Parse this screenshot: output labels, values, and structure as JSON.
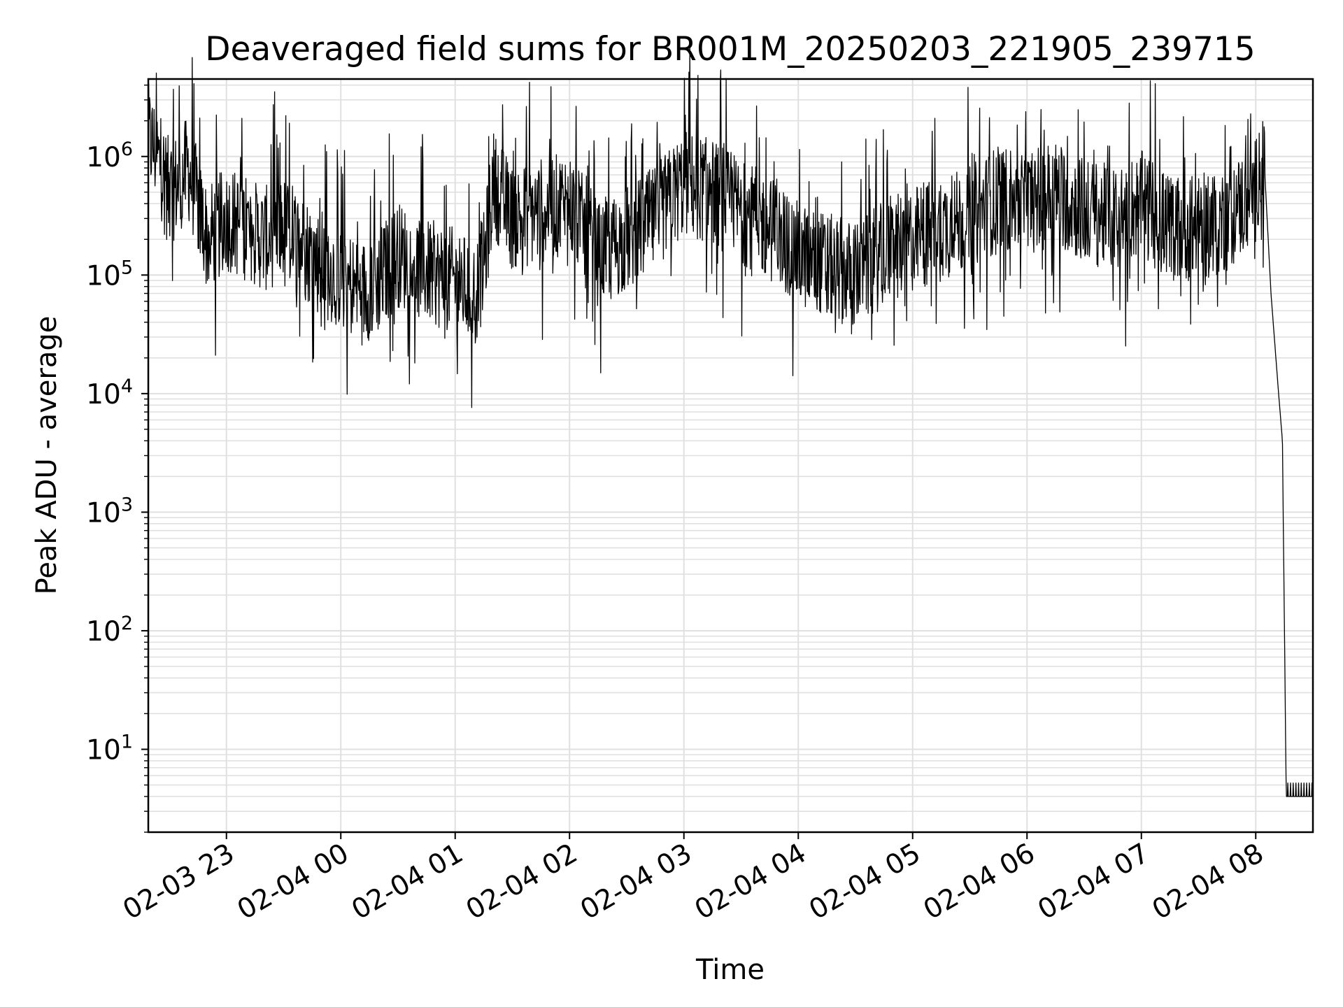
{
  "chart_data": {
    "type": "line",
    "title": "Deaveraged field sums for BR001M_20250203_221905_239715",
    "xlabel": "Time",
    "ylabel": "Peak ADU - average",
    "yscale": "log",
    "ylim": [
      2,
      4500000
    ],
    "xlim": [
      "2025-02-03 22:19",
      "2025-02-04 08:30"
    ],
    "grid": true,
    "line_color": "#000000",
    "grid_color": "#e0e0e0",
    "x_ticks": [
      "02-03 23",
      "02-04 00",
      "02-04 01",
      "02-04 02",
      "02-04 03",
      "02-04 04",
      "02-04 05",
      "02-04 06",
      "02-04 07",
      "02-04 08"
    ],
    "y_ticks": [
      {
        "base": "10",
        "exp": "1",
        "value": 10
      },
      {
        "base": "10",
        "exp": "2",
        "value": 100
      },
      {
        "base": "10",
        "exp": "3",
        "value": 1000
      },
      {
        "base": "10",
        "exp": "4",
        "value": 10000
      },
      {
        "base": "10",
        "exp": "5",
        "value": 100000
      },
      {
        "base": "10",
        "exp": "6",
        "value": 1000000
      }
    ],
    "series": [
      {
        "x": [
          "2025-02-03 22:19",
          "2025-02-03 22:25",
          "2025-02-03 22:30",
          "2025-02-03 22:35",
          "2025-02-03 22:40",
          "2025-02-03 22:45",
          "2025-02-03 22:50",
          "2025-02-03 23:00",
          "2025-02-03 23:10",
          "2025-02-03 23:20",
          "2025-02-03 23:30",
          "2025-02-03 23:40",
          "2025-02-03 23:50",
          "2025-02-04 00:00",
          "2025-02-04 00:10",
          "2025-02-04 00:20",
          "2025-02-04 00:30",
          "2025-02-04 00:40",
          "2025-02-04 00:50",
          "2025-02-04 01:00",
          "2025-02-04 01:10",
          "2025-02-04 01:15",
          "2025-02-04 01:20",
          "2025-02-04 01:30",
          "2025-02-04 01:45",
          "2025-02-04 02:00",
          "2025-02-04 02:15",
          "2025-02-04 02:30",
          "2025-02-04 02:45",
          "2025-02-04 03:00",
          "2025-02-04 03:15",
          "2025-02-04 03:30",
          "2025-02-04 03:45",
          "2025-02-04 04:00",
          "2025-02-04 04:15",
          "2025-02-04 04:30",
          "2025-02-04 04:45",
          "2025-02-04 05:00",
          "2025-02-04 05:15",
          "2025-02-04 05:30",
          "2025-02-04 05:45",
          "2025-02-04 06:00",
          "2025-02-04 06:15",
          "2025-02-04 06:30",
          "2025-02-04 06:45",
          "2025-02-04 07:00",
          "2025-02-04 07:15",
          "2025-02-04 07:30",
          "2025-02-04 07:45",
          "2025-02-04 08:00",
          "2025-02-04 08:02",
          "2025-02-04 08:05",
          "2025-02-04 08:08",
          "2025-02-04 08:12",
          "2025-02-04 08:14",
          "2025-02-04 08:16",
          "2025-02-04 08:30"
        ],
        "y": [
          1500000,
          900000,
          500000,
          600000,
          800000,
          400000,
          200000,
          300000,
          250000,
          200000,
          250000,
          180000,
          120000,
          100000,
          70000,
          90000,
          150000,
          120000,
          100000,
          90000,
          70000,
          120000,
          600000,
          300000,
          350000,
          400000,
          150000,
          200000,
          300000,
          600000,
          500000,
          350000,
          250000,
          150000,
          120000,
          100000,
          150000,
          200000,
          250000,
          300000,
          450000,
          400000,
          500000,
          350000,
          300000,
          400000,
          250000,
          250000,
          300000,
          500000,
          900000,
          600000,
          70000,
          10000,
          4000,
          4,
          4
        ]
      }
    ]
  }
}
